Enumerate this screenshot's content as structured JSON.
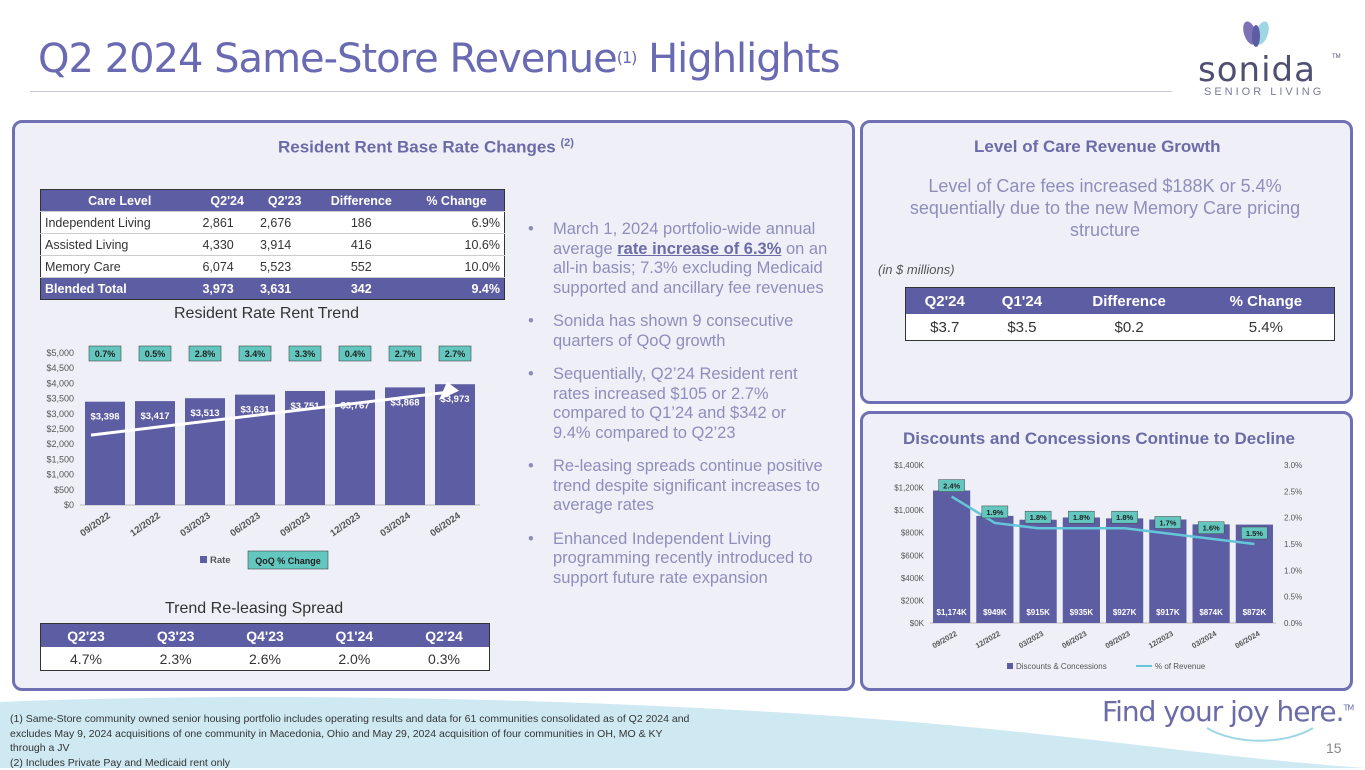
{
  "header": {
    "title": "Q2 2024 Same-Store Revenue",
    "title_sup": "(1)",
    "title_end": " Highlights"
  },
  "logo": {
    "word": "sonida",
    "tm": "TM",
    "sub": "SENIOR LIVING"
  },
  "left_panel": {
    "title": "Resident Rent Base Rate Changes",
    "title_sup": "(2)",
    "rate_table": {
      "headers": [
        "Care Level",
        "Q2'24",
        "Q2'23",
        "Difference",
        "% Change"
      ],
      "rows": [
        [
          "Independent Living",
          "2,861",
          "2,676",
          "186",
          "6.9%"
        ],
        [
          "Assisted Living",
          "4,330",
          "3,914",
          "416",
          "10.6%"
        ],
        [
          "Memory Care",
          "6,074",
          "5,523",
          "552",
          "10.0%"
        ]
      ],
      "total": [
        "Blended Total",
        "3,973",
        "3,631",
        "342",
        "9.4%"
      ]
    },
    "trend_chart_title": "Resident Rate Rent Trend",
    "spread_title": "Trend Re-leasing Spread",
    "spread_table": {
      "headers": [
        "Q2'23",
        "Q3'23",
        "Q4'23",
        "Q1'24",
        "Q2'24"
      ],
      "values": [
        "4.7%",
        "2.3%",
        "2.6%",
        "2.0%",
        "0.3%"
      ]
    },
    "bullets": [
      {
        "pre": "March 1, 2024 portfolio-wide annual average ",
        "bold": "rate increase of 6.3%",
        "post": " on an all-in basis; 7.3% excluding Medicaid supported and ancillary fee revenues"
      },
      {
        "pre": "Sonida has shown 9 consecutive quarters of QoQ growth",
        "bold": "",
        "post": ""
      },
      {
        "pre": "Sequentially, Q2’24 Resident rent rates increased $105 or 2.7% compared to Q1’24 and $342 or 9.4% compared to Q2’23",
        "bold": "",
        "post": ""
      },
      {
        "pre": "Re-leasing spreads continue positive trend despite significant increases to average rates",
        "bold": "",
        "post": ""
      },
      {
        "pre": "Enhanced Independent Living programming recently introduced to support future rate expansion",
        "bold": "",
        "post": ""
      }
    ]
  },
  "loc_panel": {
    "title": "Level of Care Revenue Growth",
    "text": "Level of Care fees increased $188K or 5.4% sequentially due to the new Memory Care pricing structure",
    "units": "(in $ millions)",
    "table": {
      "headers": [
        "Q2'24",
        "Q1'24",
        "Difference",
        "% Change"
      ],
      "values": [
        "$3.7",
        "$3.5",
        "$0.2",
        "5.4%"
      ]
    }
  },
  "disc_panel": {
    "title": "Discounts and Concessions Continue to Decline"
  },
  "chart_data": [
    {
      "type": "bar",
      "title": "Resident Rate Rent Trend",
      "categories": [
        "09/2022",
        "12/2022",
        "03/2023",
        "06/2023",
        "09/2023",
        "12/2023",
        "03/2024",
        "06/2024"
      ],
      "series": [
        {
          "name": "Rate",
          "values": [
            3398,
            3417,
            3513,
            3631,
            3751,
            3767,
            3868,
            3973
          ],
          "labels": [
            "$3,398",
            "$3,417",
            "$3,513",
            "$3,631",
            "$3,751",
            "$3,767",
            "$3,868",
            "$3,973"
          ],
          "color": "#5d5da3"
        },
        {
          "name": "QoQ % Change",
          "labels": [
            "0.7%",
            "0.5%",
            "2.8%",
            "3.4%",
            "3.3%",
            "0.4%",
            "2.7%",
            "2.7%"
          ],
          "values": [
            0.7,
            0.5,
            2.8,
            3.4,
            3.3,
            0.4,
            2.7,
            2.7
          ],
          "color": "#63c7c0"
        }
      ],
      "ylim": [
        0,
        5000
      ],
      "yticks": [
        "$0",
        "$500",
        "$1,000",
        "$1,500",
        "$2,000",
        "$2,500",
        "$3,000",
        "$3,500",
        "$4,000",
        "$4,500",
        "$5,000"
      ],
      "legend": "bottom"
    },
    {
      "type": "bar",
      "title": "Discounts and Concessions Continue to Decline",
      "categories": [
        "09/2022",
        "12/2022",
        "03/2023",
        "06/2023",
        "09/2023",
        "12/2023",
        "03/2024",
        "06/2024"
      ],
      "series": [
        {
          "name": "Discounts & Concessions",
          "values": [
            1174,
            949,
            915,
            935,
            927,
            917,
            874,
            872
          ],
          "labels": [
            "$1,174K",
            "$949K",
            "$915K",
            "$935K",
            "$927K",
            "$917K",
            "$874K",
            "$872K"
          ],
          "color": "#5d5da3"
        },
        {
          "name": "% of Revenue",
          "values": [
            2.4,
            1.9,
            1.8,
            1.8,
            1.8,
            1.7,
            1.6,
            1.5
          ],
          "labels": [
            "2.4%",
            "1.9%",
            "1.8%",
            "1.8%",
            "1.8%",
            "1.7%",
            "1.6%",
            "1.5%"
          ],
          "color": "#63c7d9"
        }
      ],
      "ylim": [
        0,
        1400
      ],
      "y2lim": [
        0,
        3.0
      ],
      "yticks": [
        "$0K",
        "$200K",
        "$400K",
        "$600K",
        "$800K",
        "$1,000K",
        "$1,200K",
        "$1,400K"
      ],
      "y2ticks": [
        "0.0%",
        "0.5%",
        "1.0%",
        "1.5%",
        "2.0%",
        "2.5%",
        "3.0%"
      ],
      "legend": "bottom"
    }
  ],
  "footnotes": [
    "(1) Same-Store community owned senior housing portfolio includes operating results and data for 61 communities consolidated as of Q2 2024 and excludes May 9, 2024 acquisitions of one community in Macedonia, Ohio and May 29, 2024 acquisition of four communities in OH, MO & KY through a JV",
    "(2) Includes Private Pay and Medicaid rent only"
  ],
  "tagline": "Find your joy here.",
  "tagline_tm": "TM",
  "page_number": "15",
  "colors": {
    "brand": "#6a6ab3",
    "bar": "#5d5da3",
    "accent": "#63c7c0",
    "panel": "#efeff7"
  }
}
